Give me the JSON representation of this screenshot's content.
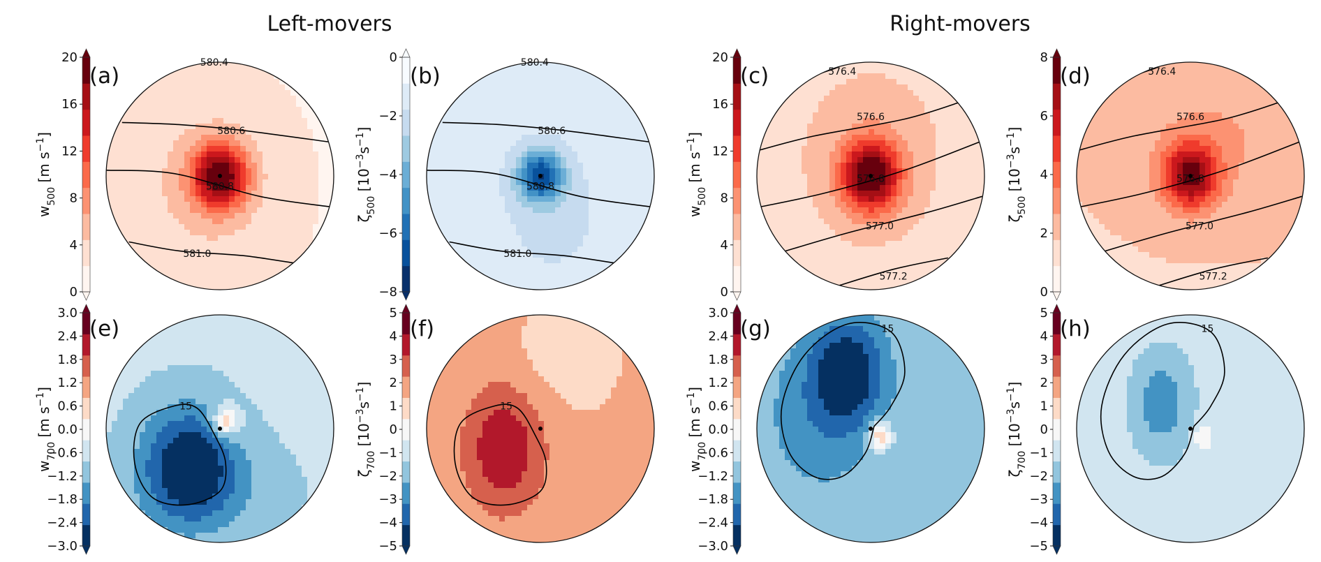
{
  "headers": {
    "left": "Left-movers",
    "right": "Right-movers"
  },
  "colors": {
    "reds": [
      "#fff5f0",
      "#fee0d2",
      "#fcbba1",
      "#fc9272",
      "#fb6a4a",
      "#ef3b2c",
      "#cb181d",
      "#a50f15",
      "#67000d"
    ],
    "rdbu": [
      "#053061",
      "#2166ac",
      "#4393c3",
      "#92c5de",
      "#d1e5f0",
      "#f7f7f7",
      "#fddbc7",
      "#f4a582",
      "#d6604d",
      "#b2182b",
      "#67001f"
    ],
    "blues": [
      "#08306b",
      "#08519c",
      "#2171b5",
      "#4292c6",
      "#6baed6",
      "#9ecae1",
      "#c6dbef",
      "#deebf7",
      "#f7fbff"
    ],
    "contour": "#000000"
  },
  "chart_data": [
    {
      "id": "a",
      "type": "contour",
      "label": "(a)",
      "cbar_label": [
        "w",
        "500",
        " [m s",
        "−1",
        "]"
      ],
      "cmap": "reds",
      "vmin": 0,
      "vmax": 20,
      "ticks": [
        "0",
        "4",
        "8",
        "12",
        "16",
        "20"
      ],
      "background": 0.1,
      "blobs": [
        {
          "x": 0,
          "y": 0,
          "amp": 0.82,
          "sx": 0.17,
          "sy": 0.2
        },
        {
          "x": -0.15,
          "y": -0.1,
          "amp": 0.15,
          "sx": 0.45,
          "sy": 0.55
        }
      ],
      "center": [
        0,
        0
      ],
      "contours": [
        {
          "label": "580.4",
          "pts": [
            [
              -0.55,
              1.02
            ],
            [
              0.2,
              1.02
            ]
          ],
          "lx": -0.05,
          "ly": 1.0
        },
        {
          "label": "580.6",
          "pts": [
            [
              -0.86,
              0.47
            ],
            [
              -0.35,
              0.45
            ],
            [
              0.2,
              0.4
            ],
            [
              0.95,
              0.3
            ]
          ],
          "lx": 0.1,
          "ly": 0.4
        },
        {
          "label": "580.8",
          "pts": [
            [
              -1.0,
              0.05
            ],
            [
              -0.4,
              0.02
            ],
            [
              0.35,
              -0.18
            ],
            [
              0.96,
              -0.27
            ]
          ],
          "lx": 0.0,
          "ly": -0.09
        },
        {
          "label": "581.0",
          "pts": [
            [
              -0.8,
              -0.58
            ],
            [
              -0.35,
              -0.66
            ],
            [
              0.2,
              -0.7
            ],
            [
              0.68,
              -0.77
            ]
          ],
          "lx": -0.2,
          "ly": -0.68
        }
      ]
    },
    {
      "id": "b",
      "type": "contour",
      "label": "(b)",
      "cbar_label": [
        "ζ",
        "500",
        " [10",
        "−3",
        "s",
        "−1",
        "]"
      ],
      "cmap": "blues",
      "vmin": -8,
      "vmax": 0,
      "ticks": [
        "−8",
        "−6",
        "−4",
        "−2",
        "0"
      ],
      "background": 0.85,
      "blobs": [
        {
          "x": 0,
          "y": 0,
          "amp": -0.68,
          "sx": 0.14,
          "sy": 0.16
        },
        {
          "x": 0.1,
          "y": -0.35,
          "amp": -0.1,
          "sx": 0.4,
          "sy": 0.5
        }
      ],
      "center": [
        0,
        0
      ],
      "contours": [
        {
          "label": "580.4",
          "pts": [
            [
              -0.55,
              1.02
            ],
            [
              0.2,
              1.02
            ]
          ],
          "lx": -0.05,
          "ly": 1.0
        },
        {
          "label": "580.6",
          "pts": [
            [
              -0.86,
              0.47
            ],
            [
              -0.35,
              0.45
            ],
            [
              0.2,
              0.4
            ],
            [
              0.95,
              0.3
            ]
          ],
          "lx": 0.1,
          "ly": 0.4
        },
        {
          "label": "580.8",
          "pts": [
            [
              -1.0,
              0.05
            ],
            [
              -0.4,
              0.02
            ],
            [
              0.35,
              -0.18
            ],
            [
              0.96,
              -0.27
            ]
          ],
          "lx": 0.0,
          "ly": -0.09
        },
        {
          "label": "581.0",
          "pts": [
            [
              -0.8,
              -0.58
            ],
            [
              -0.35,
              -0.66
            ],
            [
              0.2,
              -0.7
            ],
            [
              0.68,
              -0.77
            ]
          ],
          "lx": -0.2,
          "ly": -0.68
        }
      ]
    },
    {
      "id": "c",
      "type": "contour",
      "label": "(c)",
      "cbar_label": [
        "w",
        "500",
        " [m s",
        "−1",
        "]"
      ],
      "cmap": "reds",
      "vmin": 0,
      "vmax": 20,
      "ticks": [
        "0",
        "4",
        "8",
        "12",
        "16",
        "20"
      ],
      "background": 0.16,
      "blobs": [
        {
          "x": 0,
          "y": 0,
          "amp": 0.8,
          "sx": 0.18,
          "sy": 0.22
        },
        {
          "x": 0,
          "y": 0.2,
          "amp": 0.12,
          "sx": 0.5,
          "sy": 0.6
        }
      ],
      "center": [
        0,
        0
      ],
      "contours": [
        {
          "label": "576.4",
          "pts": [
            [
              -0.68,
              0.82
            ],
            [
              -0.3,
              0.95
            ]
          ],
          "lx": -0.25,
          "ly": 0.92
        },
        {
          "label": "576.6",
          "pts": [
            [
              -1.0,
              0.22
            ],
            [
              -0.5,
              0.35
            ],
            [
              0.3,
              0.5
            ],
            [
              0.82,
              0.66
            ]
          ],
          "lx": 0.0,
          "ly": 0.52
        },
        {
          "label": "576.8",
          "pts": [
            [
              -0.96,
              -0.27
            ],
            [
              -0.4,
              -0.15
            ],
            [
              0.3,
              0.05
            ],
            [
              0.96,
              0.3
            ]
          ],
          "lx": 0.0,
          "ly": -0.02
        },
        {
          "label": "577.0",
          "pts": [
            [
              -0.75,
              -0.66
            ],
            [
              -0.2,
              -0.5
            ],
            [
              0.5,
              -0.32
            ],
            [
              0.98,
              -0.18
            ]
          ],
          "lx": 0.08,
          "ly": -0.44
        },
        {
          "label": "577.2",
          "pts": [
            [
              -0.3,
              -0.97
            ],
            [
              0.2,
              -0.82
            ],
            [
              0.68,
              -0.72
            ]
          ],
          "lx": 0.2,
          "ly": -0.88
        }
      ]
    },
    {
      "id": "d",
      "type": "contour",
      "label": "(d)",
      "cbar_label": [
        "ζ",
        "500",
        " [10",
        "−3",
        "s",
        "−1",
        "]"
      ],
      "cmap": "reds",
      "vmin": 0,
      "vmax": 8,
      "ticks": [
        "0",
        "2",
        "4",
        "6",
        "8"
      ],
      "background": 0.22,
      "blobs": [
        {
          "x": 0,
          "y": 0,
          "amp": 0.7,
          "sx": 0.17,
          "sy": 0.2
        },
        {
          "x": 0.25,
          "y": 0.35,
          "amp": 0.12,
          "sx": 0.5,
          "sy": 0.4
        }
      ],
      "center": [
        0,
        0
      ],
      "contours": [
        {
          "label": "576.4",
          "pts": [
            [
              -0.68,
              0.82
            ],
            [
              -0.3,
              0.95
            ]
          ],
          "lx": -0.25,
          "ly": 0.92
        },
        {
          "label": "576.6",
          "pts": [
            [
              -1.0,
              0.22
            ],
            [
              -0.5,
              0.35
            ],
            [
              0.3,
              0.5
            ],
            [
              0.82,
              0.66
            ]
          ],
          "lx": 0.0,
          "ly": 0.52
        },
        {
          "label": "576.8",
          "pts": [
            [
              -0.96,
              -0.27
            ],
            [
              -0.4,
              -0.15
            ],
            [
              0.3,
              0.05
            ],
            [
              0.96,
              0.3
            ]
          ],
          "lx": 0.0,
          "ly": -0.02
        },
        {
          "label": "577.0",
          "pts": [
            [
              -0.75,
              -0.66
            ],
            [
              -0.2,
              -0.5
            ],
            [
              0.5,
              -0.32
            ],
            [
              0.98,
              -0.18
            ]
          ],
          "lx": 0.08,
          "ly": -0.44
        },
        {
          "label": "577.2",
          "pts": [
            [
              -0.3,
              -0.97
            ],
            [
              0.2,
              -0.82
            ],
            [
              0.68,
              -0.72
            ]
          ],
          "lx": 0.2,
          "ly": -0.88
        }
      ]
    },
    {
      "id": "e",
      "type": "contour",
      "label": "(e)",
      "cbar_label": [
        "w",
        "700",
        " [m s",
        "−1",
        "]"
      ],
      "cmap": "rdbu",
      "vmin": -3,
      "vmax": 3,
      "ticks": [
        "−3.0",
        "−2.4",
        "−1.8",
        "−1.2",
        "−0.6",
        "0.0",
        "0.6",
        "1.2",
        "1.8",
        "2.4",
        "3.0"
      ],
      "background": 0.38,
      "blobs": [
        {
          "x": -0.28,
          "y": -0.3,
          "amp": -0.36,
          "sx": 0.28,
          "sy": 0.35
        },
        {
          "x": 0.05,
          "y": 0.06,
          "amp": 0.3,
          "sx": 0.08,
          "sy": 0.09
        },
        {
          "x": -0.1,
          "y": -0.55,
          "amp": -0.1,
          "sx": 0.45,
          "sy": 0.3
        }
      ],
      "center": [
        0,
        0
      ],
      "contours": [
        {
          "label": "15",
          "closed": true,
          "pts": [
            [
              -0.4,
              0.2
            ],
            [
              -0.7,
              0.05
            ],
            [
              -0.75,
              -0.3
            ],
            [
              -0.6,
              -0.6
            ],
            [
              -0.3,
              -0.67
            ],
            [
              0.0,
              -0.55
            ],
            [
              0.05,
              -0.3
            ],
            [
              -0.05,
              -0.05
            ],
            [
              -0.2,
              0.18
            ]
          ],
          "lx": -0.3,
          "ly": 0.2
        }
      ]
    },
    {
      "id": "f",
      "type": "contour",
      "label": "(f)",
      "cbar_label": [
        "ζ",
        "700",
        " [10",
        "−3",
        "s",
        "−1",
        "]"
      ],
      "cmap": "rdbu",
      "vmin": -5,
      "vmax": 5,
      "ticks": [
        "−5",
        "−4",
        "−3",
        "−2",
        "−1",
        "0",
        "1",
        "2",
        "3",
        "4",
        "5"
      ],
      "background": 0.65,
      "blobs": [
        {
          "x": -0.32,
          "y": -0.18,
          "amp": 0.25,
          "sx": 0.25,
          "sy": 0.4
        },
        {
          "x": 0.2,
          "y": 0.6,
          "amp": -0.06,
          "sx": 0.3,
          "sy": 0.3
        }
      ],
      "center": [
        0,
        0
      ],
      "contours": [
        {
          "label": "15",
          "closed": true,
          "pts": [
            [
              -0.4,
              0.2
            ],
            [
              -0.7,
              0.05
            ],
            [
              -0.75,
              -0.3
            ],
            [
              -0.6,
              -0.6
            ],
            [
              -0.3,
              -0.67
            ],
            [
              0.0,
              -0.55
            ],
            [
              0.05,
              -0.3
            ],
            [
              -0.05,
              -0.05
            ],
            [
              -0.2,
              0.18
            ]
          ],
          "lx": -0.3,
          "ly": 0.2
        }
      ]
    },
    {
      "id": "g",
      "type": "contour",
      "label": "(g)",
      "cbar_label": [
        "w",
        "700",
        " [m s",
        "−1",
        "]"
      ],
      "cmap": "rdbu",
      "vmin": -3,
      "vmax": 3,
      "ticks": [
        "−3.0",
        "−2.4",
        "−1.8",
        "−1.2",
        "−0.6",
        "0.0",
        "0.6",
        "1.2",
        "1.8",
        "2.4",
        "3.0"
      ],
      "background": 0.34,
      "blobs": [
        {
          "x": -0.2,
          "y": 0.5,
          "amp": -0.32,
          "sx": 0.22,
          "sy": 0.32
        },
        {
          "x": 0.08,
          "y": -0.06,
          "amp": 0.32,
          "sx": 0.07,
          "sy": 0.09
        },
        {
          "x": -0.45,
          "y": 0.1,
          "amp": -0.12,
          "sx": 0.35,
          "sy": 0.5
        }
      ],
      "center": [
        0,
        0
      ],
      "contours": [
        {
          "label": "15",
          "pts": [
            [
              0.03,
              0.02
            ],
            [
              0.18,
              0.2
            ],
            [
              0.3,
              0.5
            ],
            [
              0.18,
              0.85
            ],
            [
              -0.2,
              0.92
            ],
            [
              -0.58,
              0.65
            ],
            [
              -0.78,
              0.2
            ],
            [
              -0.72,
              -0.2
            ],
            [
              -0.5,
              -0.42
            ],
            [
              -0.25,
              -0.42
            ],
            [
              -0.05,
              -0.22
            ],
            [
              0.03,
              0.02
            ]
          ],
          "lx": 0.15,
          "ly": 0.88
        }
      ]
    },
    {
      "id": "h",
      "type": "contour",
      "label": "(h)",
      "cbar_label": [
        "ζ",
        "700",
        " [10",
        "−3",
        "s",
        "−1",
        "]"
      ],
      "cmap": "rdbu",
      "vmin": -5,
      "vmax": 5,
      "ticks": [
        "−5",
        "−4",
        "−3",
        "−2",
        "−1",
        "0",
        "1",
        "2",
        "3",
        "4",
        "5"
      ],
      "background": 0.42,
      "blobs": [
        {
          "x": -0.25,
          "y": 0.22,
          "amp": -0.2,
          "sx": 0.2,
          "sy": 0.35
        },
        {
          "x": 0.1,
          "y": -0.06,
          "amp": 0.12,
          "sx": 0.06,
          "sy": 0.1
        }
      ],
      "center": [
        0,
        0
      ],
      "contours": [
        {
          "label": "15",
          "pts": [
            [
              0.03,
              0.02
            ],
            [
              0.18,
              0.2
            ],
            [
              0.3,
              0.5
            ],
            [
              0.18,
              0.85
            ],
            [
              -0.2,
              0.92
            ],
            [
              -0.58,
              0.65
            ],
            [
              -0.78,
              0.2
            ],
            [
              -0.72,
              -0.2
            ],
            [
              -0.5,
              -0.42
            ],
            [
              -0.25,
              -0.42
            ],
            [
              -0.05,
              -0.22
            ],
            [
              0.03,
              0.02
            ]
          ],
          "lx": 0.15,
          "ly": 0.88
        }
      ]
    }
  ]
}
